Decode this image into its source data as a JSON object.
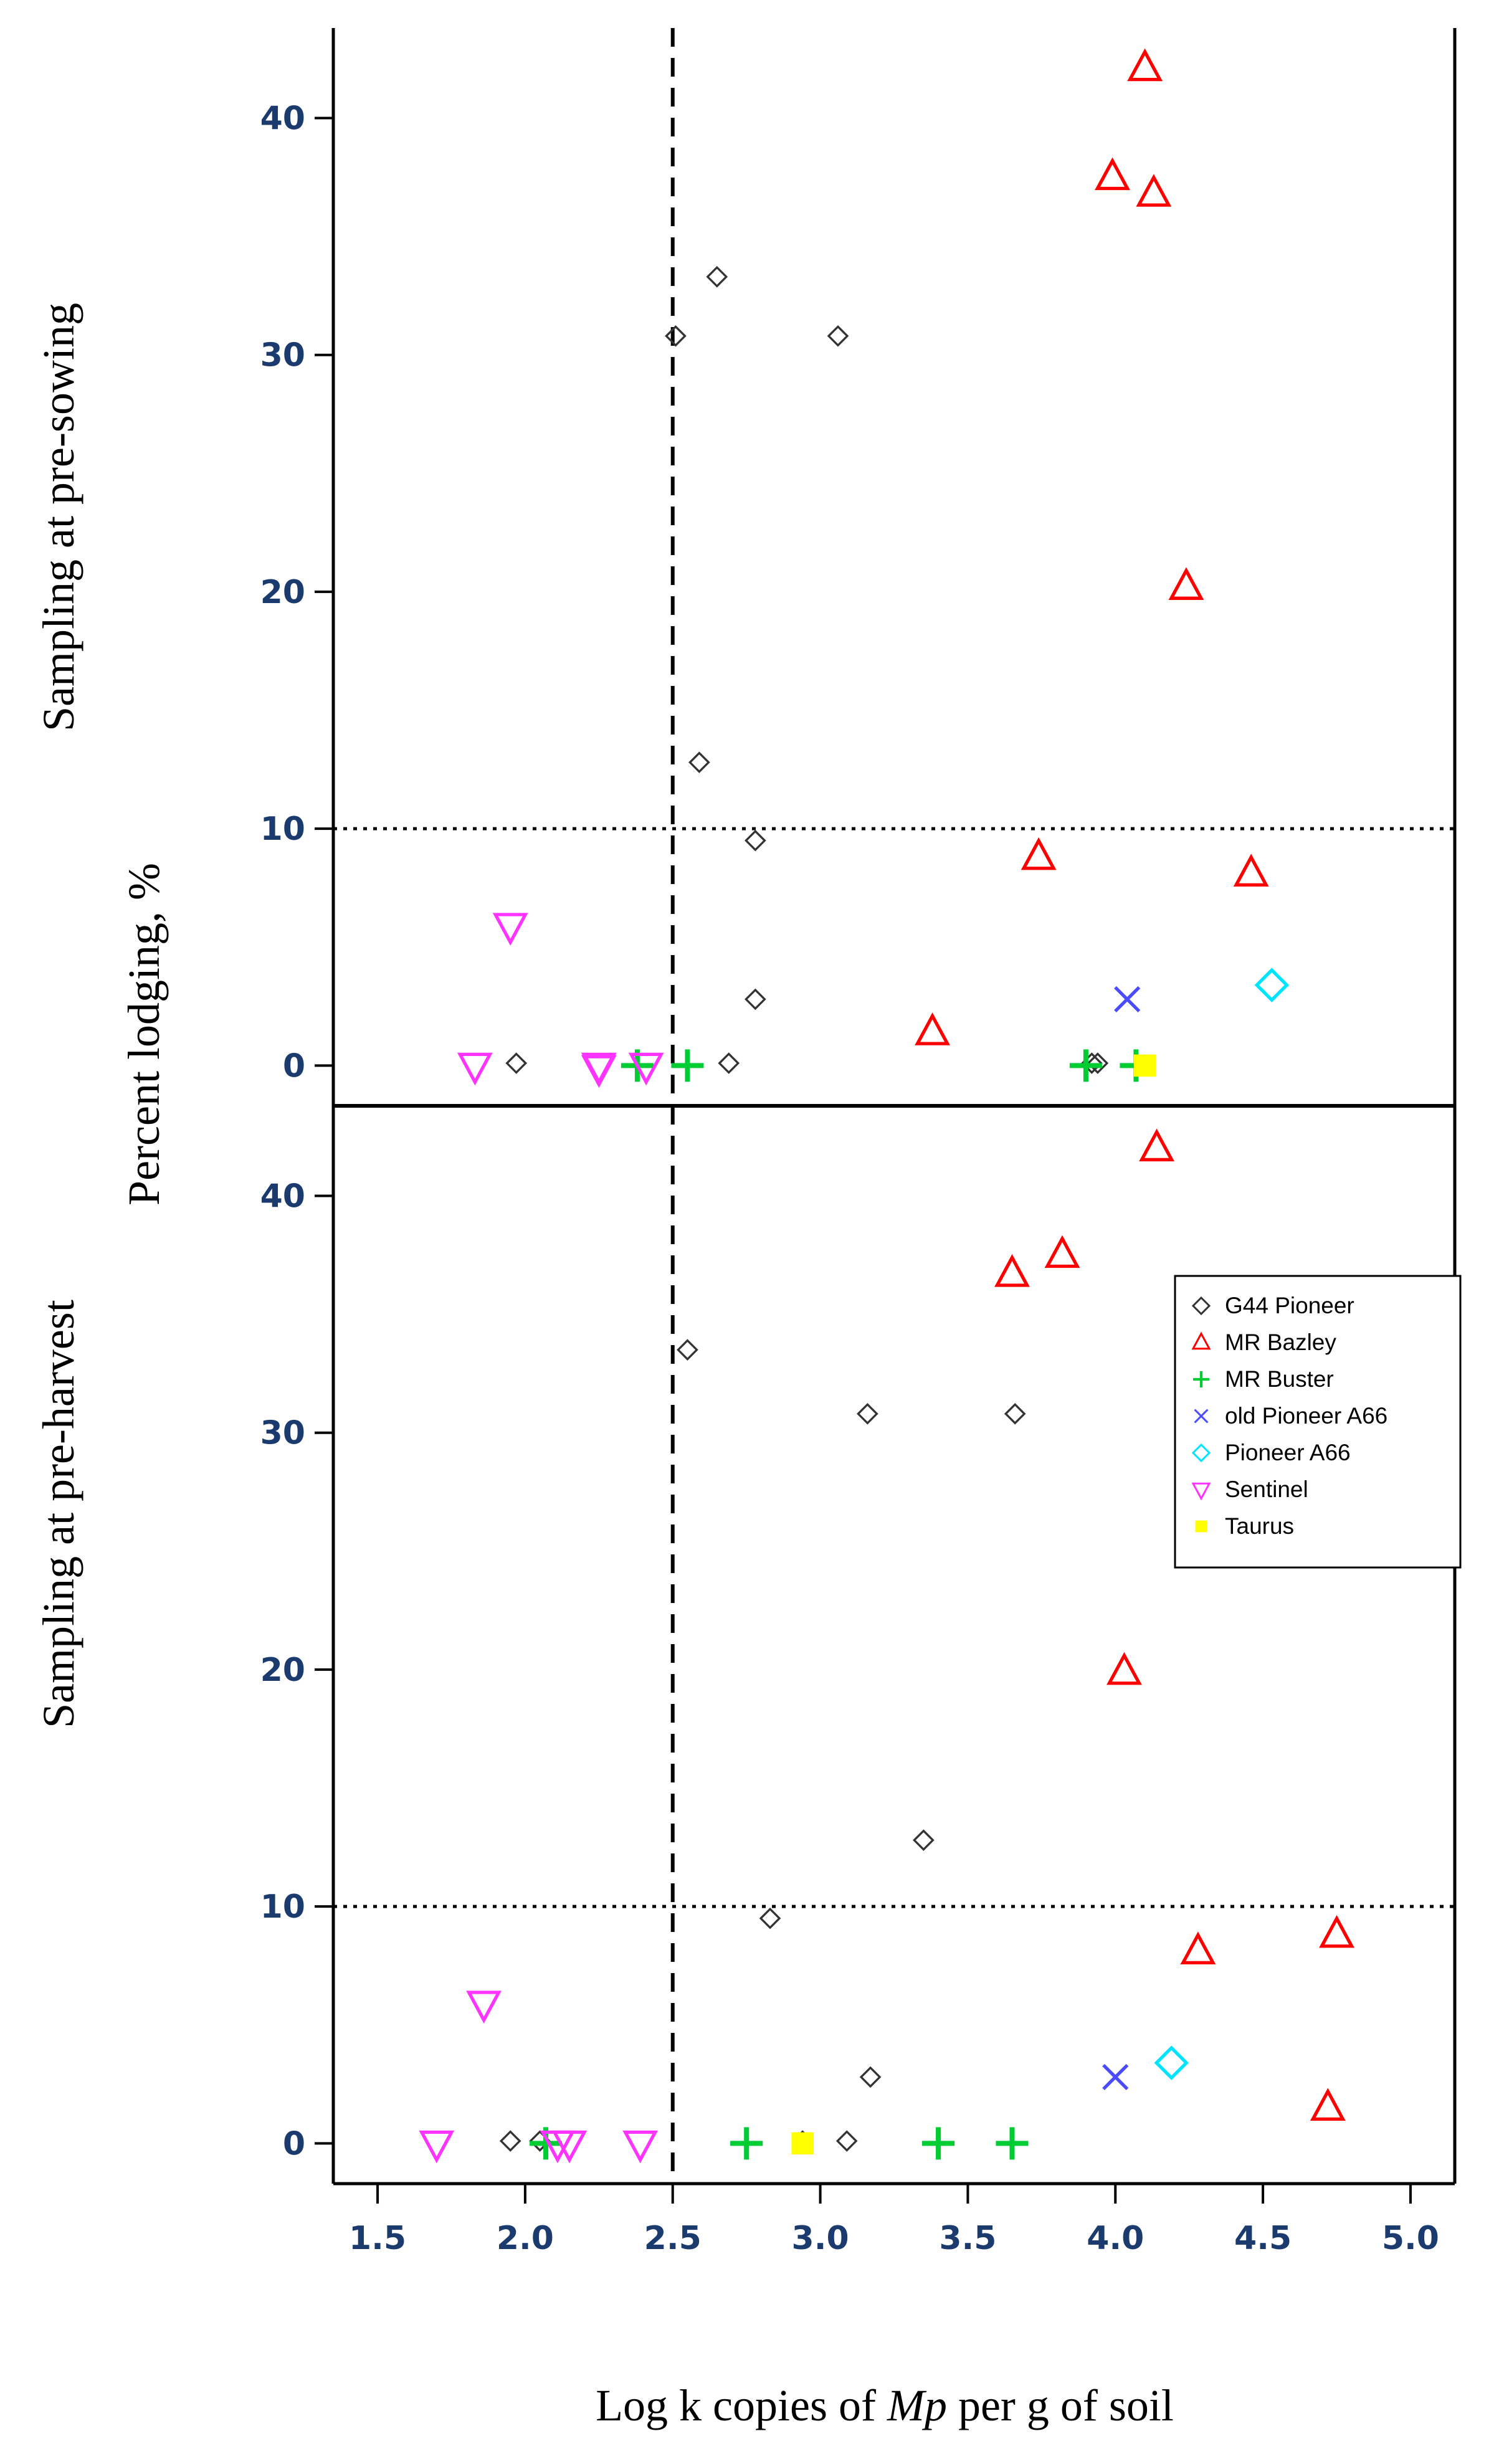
{
  "chart_data": {
    "type": "scatter",
    "xlabel": "Log k copies of Mp per g of soil",
    "xlabel_parts": {
      "pre": "Log k copies of ",
      "italic": "Mp",
      "post": " per g of soil"
    },
    "ylabel": "Percent lodging, %",
    "xlim": [
      1.35,
      5.15
    ],
    "ylim": [
      -1.7,
      43.8
    ],
    "x_ticks": [
      1.5,
      2.0,
      2.5,
      3.0,
      3.5,
      4.0,
      4.5,
      5.0
    ],
    "x_tick_labels": [
      "1.5",
      "2.0",
      "2.5",
      "3.0",
      "3.5",
      "4.0",
      "4.5",
      "5.0"
    ],
    "y_ticks": [
      0,
      10,
      20,
      30,
      40
    ],
    "y_tick_labels": [
      "0",
      "10",
      "20",
      "30",
      "40"
    ],
    "reference_lines": {
      "vertical_x": 2.5,
      "horizontal_y": 10
    },
    "legend": {
      "placement": "right",
      "entries": [
        {
          "label": "G44 Pioneer",
          "color": "#333333",
          "marker": "diamond"
        },
        {
          "label": "MR Bazley",
          "color": "#ff0000",
          "marker": "triangle-up"
        },
        {
          "label": "MR Buster",
          "color": "#00cc33",
          "marker": "plus"
        },
        {
          "label": "old Pioneer A66",
          "color": "#4a4aff",
          "marker": "cross"
        },
        {
          "label": "Pioneer A66",
          "color": "#00e5ff",
          "marker": "diamond"
        },
        {
          "label": "Sentinel",
          "color": "#ff33ff",
          "marker": "triangle-down"
        },
        {
          "label": "Taurus",
          "color": "#ffff00",
          "marker": "square"
        }
      ]
    },
    "panels": [
      {
        "row_label": "Sampling at pre-sowing",
        "series": [
          {
            "name": "G44 Pioneer",
            "points": [
              [
                2.51,
                30.8
              ],
              [
                2.65,
                33.3
              ],
              [
                3.06,
                30.8
              ],
              [
                2.59,
                12.8
              ],
              [
                2.78,
                9.5
              ],
              [
                2.78,
                2.8
              ],
              [
                1.97,
                0.1
              ],
              [
                2.69,
                0.1
              ],
              [
                3.92,
                0.1
              ],
              [
                3.94,
                0.1
              ]
            ]
          },
          {
            "name": "MR Bazley",
            "points": [
              [
                4.1,
                42.1
              ],
              [
                3.99,
                37.5
              ],
              [
                4.13,
                36.8
              ],
              [
                4.24,
                20.2
              ],
              [
                3.74,
                8.8
              ],
              [
                4.46,
                8.1
              ],
              [
                3.38,
                1.4
              ]
            ]
          },
          {
            "name": "MR Buster",
            "points": [
              [
                2.38,
                0
              ],
              [
                2.55,
                0
              ],
              [
                3.9,
                0
              ],
              [
                4.07,
                0
              ]
            ]
          },
          {
            "name": "old Pioneer A66",
            "points": [
              [
                4.04,
                2.8
              ]
            ]
          },
          {
            "name": "Pioneer A66",
            "points": [
              [
                4.53,
                3.4
              ]
            ]
          },
          {
            "name": "Sentinel",
            "points": [
              [
                1.95,
                5.9
              ],
              [
                1.83,
                0
              ],
              [
                2.25,
                0
              ],
              [
                2.41,
                0
              ],
              [
                2.25,
                -0.1
              ]
            ]
          },
          {
            "name": "Taurus",
            "points": [
              [
                4.1,
                0
              ]
            ]
          }
        ]
      },
      {
        "row_label": "Sampling at pre-harvest",
        "series": [
          {
            "name": "G44 Pioneer",
            "points": [
              [
                2.55,
                33.5
              ],
              [
                3.16,
                30.8
              ],
              [
                3.66,
                30.8
              ],
              [
                3.35,
                12.8
              ],
              [
                2.83,
                9.5
              ],
              [
                3.17,
                2.8
              ],
              [
                1.95,
                0.1
              ],
              [
                2.05,
                0.1
              ],
              [
                2.94,
                0.1
              ],
              [
                3.09,
                0.1
              ]
            ]
          },
          {
            "name": "MR Bazley",
            "points": [
              [
                4.14,
                42.0
              ],
              [
                3.82,
                37.5
              ],
              [
                3.65,
                36.7
              ],
              [
                4.03,
                19.9
              ],
              [
                4.28,
                8.1
              ],
              [
                4.75,
                8.8
              ],
              [
                4.72,
                1.5
              ]
            ]
          },
          {
            "name": "MR Buster",
            "points": [
              [
                2.07,
                0
              ],
              [
                2.75,
                0
              ],
              [
                3.4,
                0
              ],
              [
                3.65,
                0
              ]
            ]
          },
          {
            "name": "old Pioneer A66",
            "points": [
              [
                4.0,
                2.8
              ]
            ]
          },
          {
            "name": "Pioneer A66",
            "points": [
              [
                4.19,
                3.4
              ]
            ]
          },
          {
            "name": "Sentinel",
            "points": [
              [
                1.86,
                5.9
              ],
              [
                1.7,
                0
              ],
              [
                2.11,
                0
              ],
              [
                2.15,
                0
              ],
              [
                2.39,
                0
              ]
            ]
          },
          {
            "name": "Taurus",
            "points": [
              [
                2.94,
                0
              ]
            ]
          }
        ]
      }
    ]
  }
}
